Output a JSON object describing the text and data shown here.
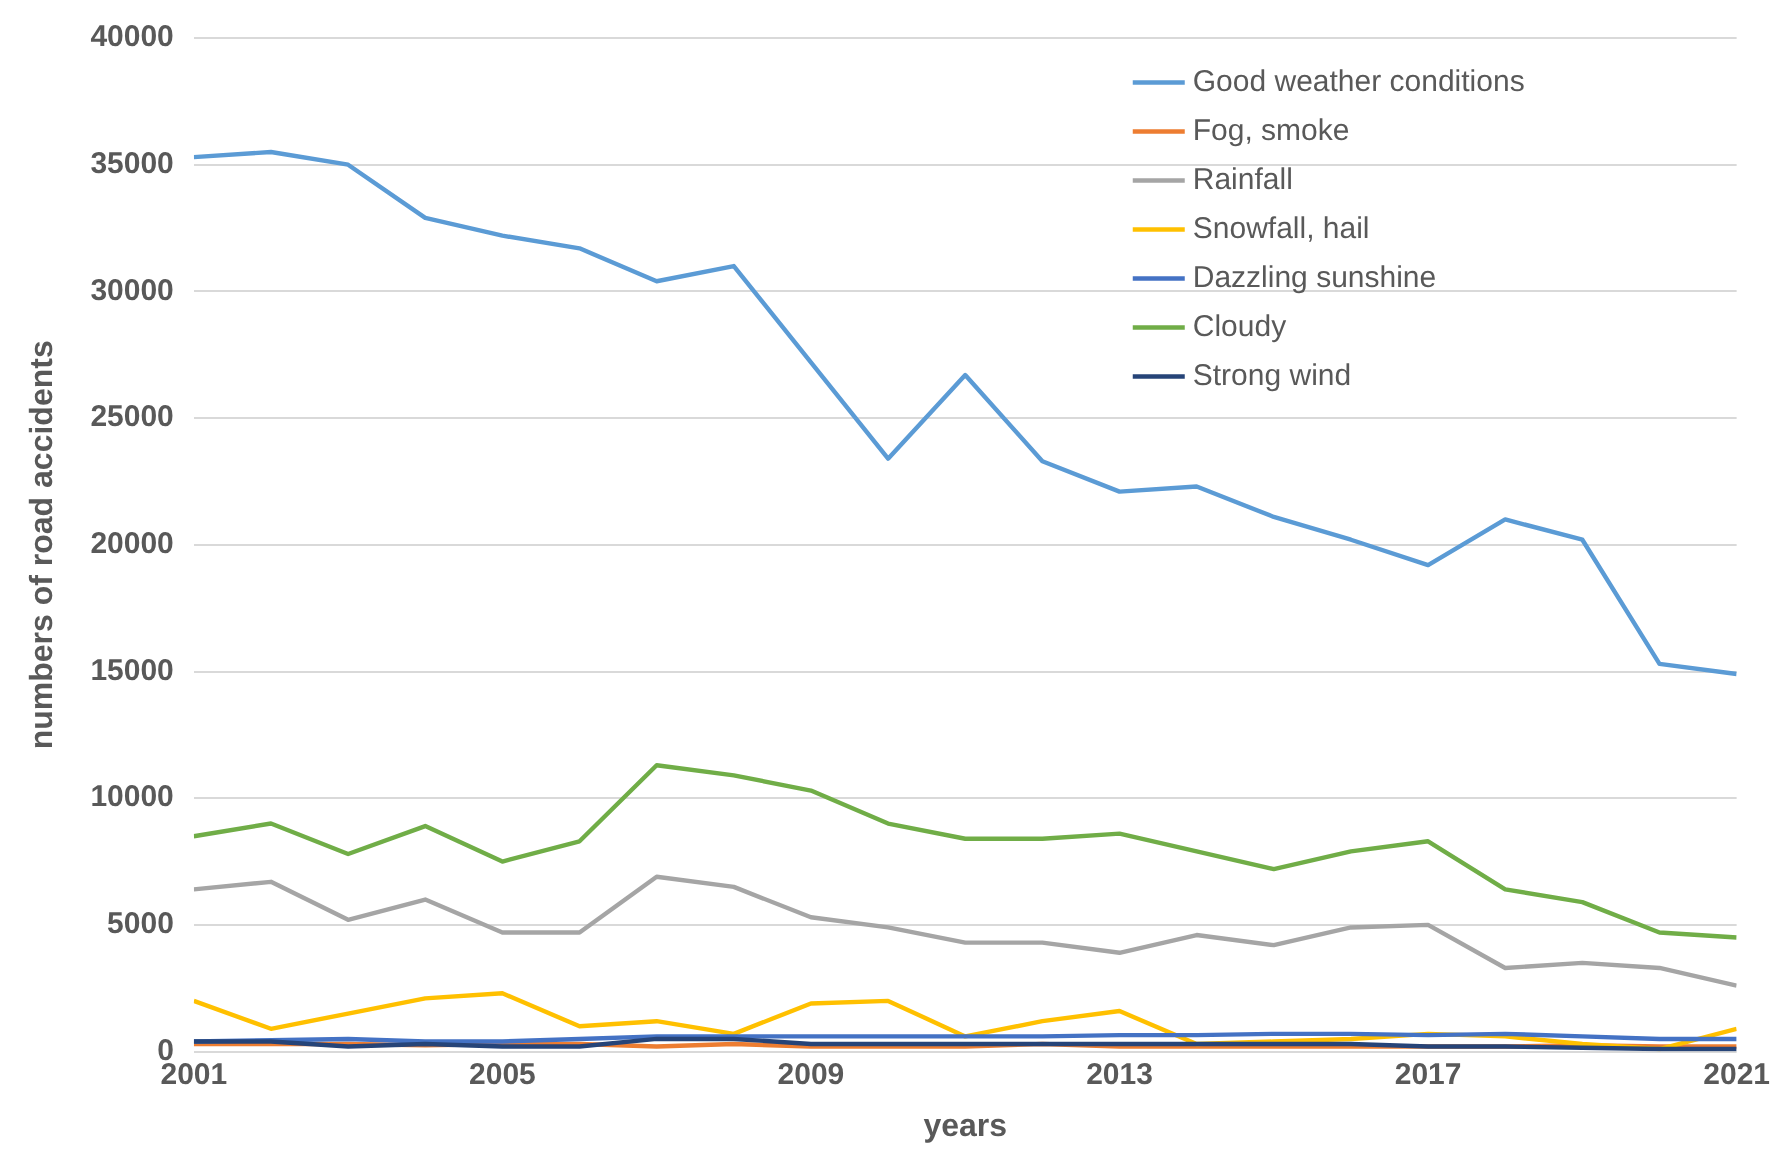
{
  "chart_data": {
    "type": "line",
    "xlabel": "years",
    "ylabel": "numbers of road accidents",
    "x": [
      2001,
      2002,
      2003,
      2004,
      2005,
      2006,
      2007,
      2008,
      2009,
      2010,
      2011,
      2012,
      2013,
      2014,
      2015,
      2016,
      2017,
      2018,
      2019,
      2020,
      2021
    ],
    "xlim": [
      2001,
      2021
    ],
    "xticks": [
      2001,
      2005,
      2009,
      2013,
      2017,
      2021
    ],
    "ylim": [
      0,
      40000
    ],
    "yticks": [
      0,
      5000,
      10000,
      15000,
      20000,
      25000,
      30000,
      35000,
      40000
    ],
    "grid": "y",
    "legend": "top right",
    "marker": "none",
    "line_style": "solid",
    "series": [
      {
        "name": "Good weather conditions",
        "color": "#5b9bd5",
        "values": [
          35300,
          35500,
          35000,
          32900,
          32200,
          31700,
          30400,
          31000,
          27200,
          23400,
          26700,
          23300,
          22100,
          22300,
          21100,
          20200,
          19200,
          21000,
          20200,
          15300,
          14900
        ]
      },
      {
        "name": "Fog, smoke",
        "color": "#ed7d31",
        "values": [
          300,
          300,
          300,
          250,
          300,
          300,
          200,
          300,
          200,
          200,
          200,
          300,
          200,
          200,
          200,
          200,
          200,
          200,
          250,
          200,
          200
        ]
      },
      {
        "name": "Rainfall",
        "color": "#a5a5a5",
        "values": [
          6400,
          6700,
          5200,
          6000,
          4700,
          4700,
          6900,
          6500,
          5300,
          4900,
          4300,
          4300,
          3900,
          4600,
          4200,
          4900,
          5000,
          3300,
          3500,
          3300,
          2600
        ]
      },
      {
        "name": "Snowfall, hail",
        "color": "#ffc000",
        "values": [
          2000,
          900,
          1500,
          2100,
          2300,
          1000,
          1200,
          700,
          1900,
          2000,
          600,
          1200,
          1600,
          300,
          400,
          500,
          700,
          600,
          300,
          100,
          900
        ]
      },
      {
        "name": "Dazzling sunshine",
        "color": "#4472c4",
        "values": [
          400,
          450,
          500,
          400,
          400,
          500,
          600,
          600,
          600,
          600,
          600,
          600,
          650,
          650,
          700,
          700,
          650,
          700,
          600,
          500,
          500
        ]
      },
      {
        "name": "Cloudy",
        "color": "#70ad47",
        "values": [
          8500,
          9000,
          7800,
          8900,
          7500,
          8300,
          11300,
          10900,
          10300,
          9000,
          8400,
          8400,
          8600,
          7900,
          7200,
          7900,
          8300,
          6400,
          5900,
          4700,
          4500
        ]
      },
      {
        "name": "Strong wind",
        "color": "#264478",
        "values": [
          400,
          400,
          200,
          300,
          200,
          200,
          500,
          500,
          300,
          300,
          300,
          300,
          300,
          300,
          300,
          300,
          200,
          200,
          150,
          100,
          100
        ]
      }
    ]
  }
}
